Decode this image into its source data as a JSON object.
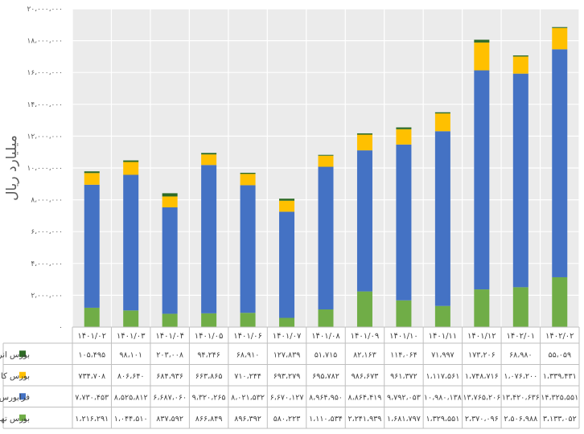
{
  "chart_data": {
    "type": "bar",
    "stacked": true,
    "ylabel": "میلیارد ریال",
    "ylim": [
      0,
      20000000
    ],
    "ytick_labels": [
      "۰",
      "۲،۰۰۰،۰۰۰",
      "۴،۰۰۰،۰۰۰",
      "۶،۰۰۰،۰۰۰",
      "۸،۰۰۰،۰۰۰",
      "۱۰،۰۰۰،۰۰۰",
      "۱۲،۰۰۰،۰۰۰",
      "۱۴،۰۰۰،۰۰۰",
      "۱۶،۰۰۰،۰۰۰",
      "۱۸،۰۰۰،۰۰۰",
      "۲۰،۰۰۰،۰۰۰"
    ],
    "grid": true,
    "legend": "data-table-left",
    "categories": [
      "۱۴۰۱/۰۲",
      "۱۴۰۱/۰۳",
      "۱۴۰۱/۰۴",
      "۱۴۰۱/۰۵",
      "۱۴۰۱/۰۶",
      "۱۴۰۱/۰۷",
      "۱۴۰۱/۰۸",
      "۱۴۰۱/۰۹",
      "۱۴۰۱/۱۰",
      "۱۴۰۱/۱۱",
      "۱۴۰۱/۱۲",
      "۱۴۰۲/۰۱",
      "۱۴۰۲/۰۲"
    ],
    "series": [
      {
        "name": "بورس تهران",
        "color": "#70ad47",
        "values": [
          1216291,
          1044510,
          837592,
          866849,
          896392,
          580223,
          1110534,
          2241939,
          1681797,
          1329551,
          2370096,
          2506988,
          3133052
        ],
        "labels": [
          "۱،۲۱۶،۲۹۱",
          "۱،۰۴۴،۵۱۰",
          "۸۳۷،۵۹۲",
          "۸۶۶،۸۴۹",
          "۸۹۶،۳۹۲",
          "۵۸۰،۲۲۳",
          "۱،۱۱۰،۵۳۴",
          "۲،۲۴۱،۹۳۹",
          "۱،۶۸۱،۷۹۷",
          "۱،۳۲۹،۵۵۱",
          "۲،۳۷۰،۰۹۶",
          "۲،۵۰۶،۹۸۸",
          "۳،۱۳۳،۰۵۲"
        ]
      },
      {
        "name": "فرابورس ایران",
        "color": "#4472c4",
        "values": [
          7730453,
          8525812,
          6687060,
          9320265,
          8021532,
          6670127,
          8964950,
          8864419,
          9792053,
          10980138,
          13765206,
          13420636,
          14325551
        ],
        "labels": [
          "۷،۷۳۰،۴۵۳",
          "۸،۵۲۵،۸۱۲",
          "۶،۶۸۷،۰۶۰",
          "۹،۳۲۰،۲۶۵",
          "۸،۰۲۱،۵۳۲",
          "۶،۶۷۰،۱۲۷",
          "۸،۹۶۴،۹۵۰",
          "۸،۸۶۴،۴۱۹",
          "۹،۷۹۲،۰۵۳",
          "۱۰،۹۸۰،۱۳۸",
          "۱۳،۷۶۵،۲۰۶",
          "۱۳،۴۲۰،۶۳۶",
          "۱۴،۳۲۵،۵۵۱"
        ]
      },
      {
        "name": "بورس کالا",
        "color": "#ffc000",
        "values": [
          734708,
          806640,
          684936,
          663865,
          710244,
          693279,
          695782,
          986673,
          961372,
          1117561,
          1748716,
          1076200,
          1339431
        ],
        "labels": [
          "۷۳۴،۷۰۸",
          "۸۰۶،۶۴۰",
          "۶۸۴،۹۳۶",
          "۶۶۳،۸۶۵",
          "۷۱۰،۲۴۴",
          "۶۹۳،۲۷۹",
          "۶۹۵،۷۸۲",
          "۹۸۶،۶۷۳",
          "۹۶۱،۳۷۲",
          "۱،۱۱۷،۵۶۱",
          "۱،۷۴۸،۷۱۶",
          "۱،۰۷۶،۲۰۰",
          "۱،۳۳۹،۴۳۱"
        ]
      },
      {
        "name": "بورس انرژی",
        "color": "#2e6b25",
        "values": [
          105495,
          98101,
          203008,
          94246,
          68910,
          127839,
          51715,
          82163,
          114064,
          71997,
          173206,
          68980,
          55059
        ],
        "labels": [
          "۱۰۵،۴۹۵",
          "۹۸،۱۰۱",
          "۲۰۳،۰۰۸",
          "۹۴،۲۴۶",
          "۶۸،۹۱۰",
          "۱۲۷،۸۳۹",
          "۵۱،۷۱۵",
          "۸۲،۱۶۳",
          "۱۱۴،۰۶۴",
          "۷۱،۹۹۷",
          "۱۷۳،۲۰۶",
          "۶۸،۹۸۰",
          "۵۵،۰۵۹"
        ]
      }
    ]
  }
}
